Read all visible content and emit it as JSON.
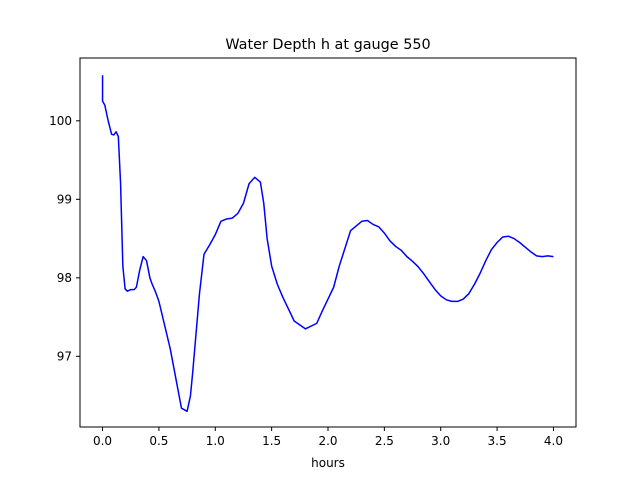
{
  "chart_data": {
    "type": "line",
    "title": "Water Depth h at gauge 550",
    "xlabel": "hours",
    "ylabel": "",
    "xlim": [
      -0.2,
      4.2
    ],
    "ylim": [
      96.1,
      100.8
    ],
    "grid": false,
    "x_ticks": [
      0.0,
      0.5,
      1.0,
      1.5,
      2.0,
      2.5,
      3.0,
      3.5,
      4.0
    ],
    "x_tick_labels": [
      "0.0",
      "0.5",
      "1.0",
      "1.5",
      "2.0",
      "2.5",
      "3.0",
      "3.5",
      "4.0"
    ],
    "y_ticks": [
      97,
      98,
      99,
      100
    ],
    "y_tick_labels": [
      "97",
      "98",
      "99",
      "100"
    ],
    "series": [
      {
        "color": "#0000ff",
        "x": [
          0.0,
          0.0,
          0.02,
          0.05,
          0.08,
          0.1,
          0.12,
          0.14,
          0.16,
          0.18,
          0.2,
          0.22,
          0.25,
          0.28,
          0.3,
          0.33,
          0.36,
          0.39,
          0.42,
          0.44,
          0.47,
          0.5,
          0.55,
          0.6,
          0.65,
          0.7,
          0.75,
          0.78,
          0.8,
          0.83,
          0.86,
          0.9,
          0.95,
          1.0,
          1.05,
          1.1,
          1.15,
          1.2,
          1.25,
          1.3,
          1.35,
          1.4,
          1.43,
          1.46,
          1.5,
          1.55,
          1.6,
          1.65,
          1.7,
          1.8,
          1.9,
          1.95,
          2.0,
          2.05,
          2.1,
          2.2,
          2.3,
          2.35,
          2.4,
          2.45,
          2.5,
          2.55,
          2.6,
          2.65,
          2.7,
          2.75,
          2.8,
          2.85,
          2.9,
          2.95,
          3.0,
          3.05,
          3.1,
          3.15,
          3.2,
          3.25,
          3.3,
          3.35,
          3.4,
          3.45,
          3.5,
          3.55,
          3.6,
          3.65,
          3.7,
          3.75,
          3.8,
          3.85,
          3.9,
          3.95,
          4.0
        ],
        "y": [
          100.58,
          100.25,
          100.2,
          100.0,
          99.83,
          99.82,
          99.86,
          99.8,
          99.2,
          98.15,
          97.86,
          97.83,
          97.85,
          97.85,
          97.88,
          98.1,
          98.27,
          98.22,
          98.0,
          97.92,
          97.82,
          97.7,
          97.4,
          97.1,
          96.72,
          96.34,
          96.3,
          96.5,
          96.8,
          97.3,
          97.8,
          98.3,
          98.42,
          98.55,
          98.72,
          98.75,
          98.76,
          98.82,
          98.95,
          99.2,
          99.28,
          99.22,
          98.95,
          98.5,
          98.15,
          97.92,
          97.75,
          97.6,
          97.45,
          97.35,
          97.42,
          97.58,
          97.73,
          97.88,
          98.15,
          98.6,
          98.72,
          98.73,
          98.68,
          98.65,
          98.57,
          98.47,
          98.4,
          98.35,
          98.27,
          98.21,
          98.14,
          98.05,
          97.95,
          97.85,
          97.77,
          97.72,
          97.7,
          97.7,
          97.73,
          97.8,
          97.92,
          98.06,
          98.22,
          98.36,
          98.45,
          98.52,
          98.53,
          98.5,
          98.45,
          98.39,
          98.33,
          98.28,
          98.27,
          98.28,
          98.27
        ]
      }
    ]
  }
}
